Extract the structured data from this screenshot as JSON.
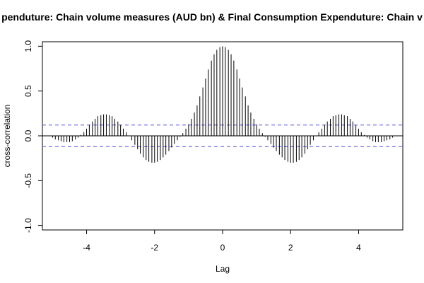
{
  "chart_data": {
    "type": "bar",
    "title": "penduture: Chain volume measures (AUD bn) & Final Consumption Expenduture: Chain v",
    "xlabel": "Lag",
    "ylabel": "cross-correlation",
    "xlim": [
      -5.3,
      5.3
    ],
    "ylim": [
      -1.05,
      1.05
    ],
    "xticks": [
      "-4",
      "-2",
      "0",
      "2",
      "4"
    ],
    "yticks": [
      "-1.0",
      "-0.5",
      "0.0",
      "0.5",
      "1.0"
    ],
    "confidence_bound": 0.12,
    "colors": {
      "bars": "#000000",
      "zero_line": "#000000",
      "ci_lines": "#4a4ae0",
      "frame": "#000000"
    },
    "series": [
      {
        "lags": [
          -5.0,
          -4.92,
          -4.83,
          -4.75,
          -4.67,
          -4.58,
          -4.5,
          -4.42,
          -4.33,
          -4.25,
          -4.17,
          -4.08,
          -4.0,
          -3.92,
          -3.83,
          -3.75,
          -3.67,
          -3.58,
          -3.5,
          -3.42,
          -3.33,
          -3.25,
          -3.17,
          -3.08,
          -3.0,
          -2.92,
          -2.83,
          -2.75,
          -2.67,
          -2.58,
          -2.5,
          -2.42,
          -2.33,
          -2.25,
          -2.17,
          -2.08,
          -2.0,
          -1.92,
          -1.83,
          -1.75,
          -1.67,
          -1.58,
          -1.5,
          -1.42,
          -1.33,
          -1.25,
          -1.17,
          -1.08,
          -1.0,
          -0.92,
          -0.83,
          -0.75,
          -0.67,
          -0.58,
          -0.5,
          -0.42,
          -0.33,
          -0.25,
          -0.17,
          -0.08,
          0.0,
          0.08,
          0.17,
          0.25,
          0.33,
          0.42,
          0.5,
          0.58,
          0.67,
          0.75,
          0.83,
          0.92,
          1.0,
          1.08,
          1.17,
          1.25,
          1.33,
          1.42,
          1.5,
          1.58,
          1.67,
          1.75,
          1.83,
          1.92,
          2.0,
          2.08,
          2.17,
          2.25,
          2.33,
          2.42,
          2.5,
          2.58,
          2.67,
          2.75,
          2.83,
          2.92,
          3.0,
          3.08,
          3.17,
          3.25,
          3.33,
          3.42,
          3.5,
          3.58,
          3.67,
          3.75,
          3.83,
          3.92,
          4.0,
          4.08,
          4.17,
          4.25,
          4.33,
          4.42,
          4.5,
          4.58,
          4.67,
          4.75,
          4.83,
          4.92,
          5.0
        ],
        "values": [
          -0.02,
          -0.04,
          -0.05,
          -0.06,
          -0.07,
          -0.07,
          -0.07,
          -0.06,
          -0.04,
          -0.02,
          0.01,
          0.04,
          0.08,
          0.12,
          0.16,
          0.19,
          0.22,
          0.23,
          0.24,
          0.24,
          0.23,
          0.22,
          0.19,
          0.16,
          0.12,
          0.08,
          0.04,
          0.0,
          -0.05,
          -0.1,
          -0.15,
          -0.2,
          -0.24,
          -0.27,
          -0.29,
          -0.3,
          -0.3,
          -0.29,
          -0.27,
          -0.24,
          -0.21,
          -0.17,
          -0.13,
          -0.09,
          -0.05,
          -0.01,
          0.03,
          0.08,
          0.13,
          0.19,
          0.26,
          0.34,
          0.44,
          0.54,
          0.64,
          0.74,
          0.84,
          0.91,
          0.96,
          0.99,
          1.0,
          0.99,
          0.96,
          0.91,
          0.84,
          0.74,
          0.64,
          0.54,
          0.44,
          0.34,
          0.26,
          0.19,
          0.13,
          0.08,
          0.03,
          -0.01,
          -0.05,
          -0.09,
          -0.13,
          -0.17,
          -0.21,
          -0.24,
          -0.27,
          -0.29,
          -0.3,
          -0.3,
          -0.29,
          -0.27,
          -0.24,
          -0.2,
          -0.15,
          -0.1,
          -0.05,
          0.0,
          0.04,
          0.08,
          0.12,
          0.16,
          0.19,
          0.22,
          0.23,
          0.24,
          0.24,
          0.23,
          0.22,
          0.19,
          0.16,
          0.12,
          0.08,
          0.04,
          0.01,
          -0.02,
          -0.04,
          -0.06,
          -0.07,
          -0.07,
          -0.07,
          -0.06,
          -0.05,
          -0.04,
          -0.02
        ]
      }
    ]
  }
}
